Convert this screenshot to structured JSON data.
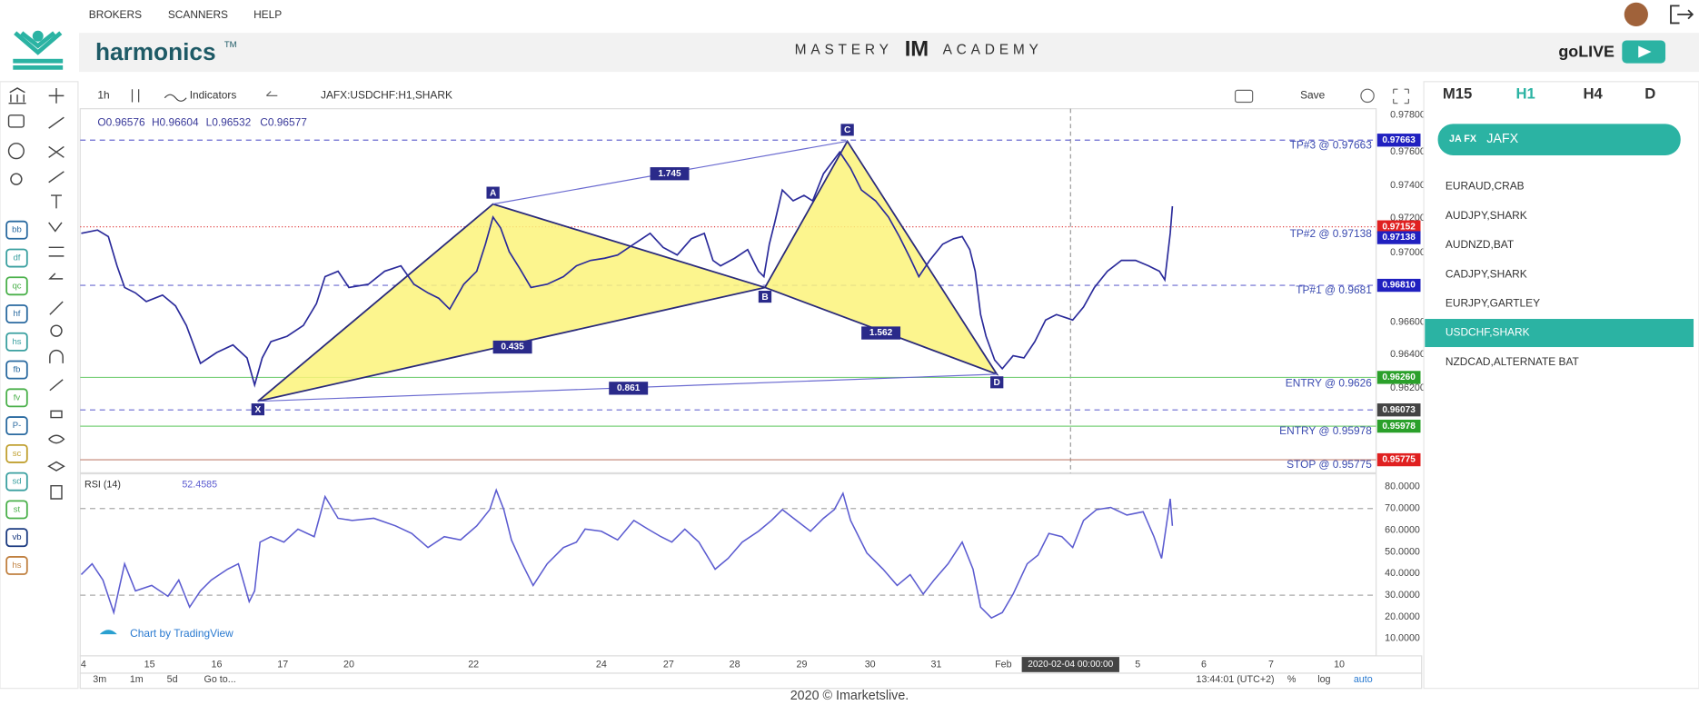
{
  "topnav": {
    "items": [
      "BROKERS",
      "SCANNERS",
      "HELP"
    ]
  },
  "header": {
    "brand": "harmonics",
    "brand_mark": "TM",
    "academy_left": "MASTERY",
    "academy_mark": "IM",
    "academy_right": "ACADEMY",
    "live": "goLIVE"
  },
  "sidebar": {
    "labels": [
      "bb",
      "df",
      "qc",
      "hf",
      "hs",
      "fb",
      "fv",
      "P-",
      "sc",
      "sd",
      "st",
      "vb",
      "hs"
    ]
  },
  "toolbar": {
    "interval": "1h",
    "indicators": "Indicators",
    "symbol": "JAFX:USDCHF:H1,SHARK",
    "save": "Save"
  },
  "ohlc": {
    "open": "O0.96576",
    "high": "H0.96604",
    "low": "L0.96532",
    "close": "C0.96577"
  },
  "pattern": {
    "points": [
      "X",
      "A",
      "B",
      "C",
      "D"
    ],
    "ratios": [
      "1.745",
      "0.435",
      "1.562",
      "0.861"
    ]
  },
  "levels": [
    "TP#3 @ 0.97663",
    "TP#2 @ 0.97138",
    "TP#1 @ 0.9681",
    "ENTRY @ 0.9626",
    "ENTRY @ 0.95978",
    "STOP @ 0.95775"
  ],
  "price_axis": [
    "0.97800",
    "0.97600",
    "0.97400",
    "0.97200",
    "0.97000",
    "0.96600",
    "0.96400",
    "0.96200"
  ],
  "price_tags": [
    "0.97663",
    "0.97152",
    "0.97138",
    "0.96810",
    "0.96260",
    "0.96073",
    "0.95978",
    "0.95775"
  ],
  "rsi": {
    "title": "RSI (14)",
    "value": "52.4585",
    "axis": [
      "80.0000",
      "70.0000",
      "60.0000",
      "50.0000",
      "40.0000",
      "30.0000",
      "20.0000",
      "10.0000"
    ]
  },
  "credit": "Chart by TradingView",
  "time_axis": [
    "4",
    "15",
    "16",
    "17",
    "20",
    "22",
    "24",
    "27",
    "28",
    "29",
    "30",
    "31",
    "Feb",
    "2020-02-04 00:00:00",
    "5",
    "6",
    "7",
    "10"
  ],
  "bottom_bar": {
    "left": [
      "3m",
      "1m",
      "5d",
      "Go to..."
    ],
    "clock": "13:44:01 (UTC+2)",
    "right": [
      "%",
      "log",
      "auto"
    ]
  },
  "panel": {
    "timeframes": [
      "M15",
      "H1",
      "H4",
      "D"
    ],
    "broker": "JAFX",
    "broker_badge": "JA FX",
    "symbols": [
      "EURAUD,CRAB",
      "AUDJPY,SHARK",
      "AUDNZD,BAT",
      "CADJPY,SHARK",
      "EURJPY,GARTLEY",
      "USDCHF,SHARK",
      "NZDCAD,ALTERNATE BAT"
    ]
  },
  "footer": "2020 © Imarketslive."
}
